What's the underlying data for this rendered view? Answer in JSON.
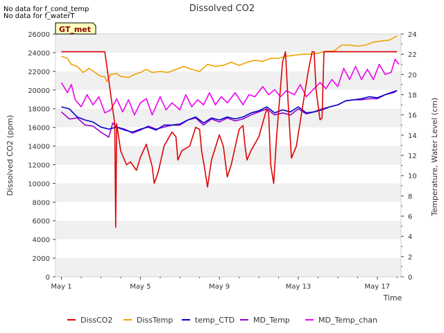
{
  "notes": [
    "No data for f_cond_temp",
    "No data for f_waterT"
  ],
  "badge": "GT_met",
  "chart_data": {
    "type": "line",
    "title": "Dissolved CO2",
    "xlabel": "Time",
    "ylabel_left": "Dissolved CO2 (ppm)",
    "ylabel_right": "Temperature, Water Level (cm)",
    "xlim": [
      0.7,
      18.2
    ],
    "ylim_left": [
      0,
      26000
    ],
    "ylim_right": [
      0,
      24
    ],
    "x_ticks": [
      {
        "x": 1,
        "label": "May 1"
      },
      {
        "x": 5,
        "label": "May 5"
      },
      {
        "x": 9,
        "label": "May 9"
      },
      {
        "x": 13,
        "label": "May 13"
      },
      {
        "x": 17,
        "label": "May 17"
      }
    ],
    "y_ticks_left": [
      0,
      2000,
      4000,
      6000,
      8000,
      10000,
      12000,
      14000,
      16000,
      18000,
      20000,
      22000,
      24000,
      26000
    ],
    "y_ticks_right": [
      0,
      2,
      4,
      6,
      8,
      10,
      12,
      14,
      16,
      18,
      20,
      22,
      24
    ],
    "grid": "horizontal bands",
    "legend_position": "bottom",
    "series": [
      {
        "name": "DissCO2",
        "axis": "left",
        "color": "#dd0000",
        "points": [
          [
            1.0,
            24100
          ],
          [
            3.2,
            24100
          ],
          [
            3.7,
            16400
          ],
          [
            3.75,
            5300
          ],
          [
            3.8,
            16400
          ],
          [
            4.0,
            13500
          ],
          [
            4.3,
            12000
          ],
          [
            4.5,
            12300
          ],
          [
            4.8,
            11400
          ],
          [
            5.0,
            12800
          ],
          [
            5.3,
            14200
          ],
          [
            5.6,
            11800
          ],
          [
            5.7,
            10000
          ],
          [
            5.9,
            11200
          ],
          [
            6.2,
            14000
          ],
          [
            6.6,
            15500
          ],
          [
            6.8,
            15000
          ],
          [
            6.9,
            12500
          ],
          [
            7.1,
            13500
          ],
          [
            7.5,
            14000
          ],
          [
            7.8,
            16000
          ],
          [
            8.0,
            15800
          ],
          [
            8.1,
            13500
          ],
          [
            8.3,
            11000
          ],
          [
            8.4,
            9600
          ],
          [
            8.6,
            12500
          ],
          [
            9.0,
            15200
          ],
          [
            9.2,
            14000
          ],
          [
            9.4,
            10700
          ],
          [
            9.6,
            12000
          ],
          [
            10.0,
            15800
          ],
          [
            10.2,
            16200
          ],
          [
            10.3,
            14000
          ],
          [
            10.4,
            12500
          ],
          [
            10.6,
            13500
          ],
          [
            11.0,
            15000
          ],
          [
            11.4,
            18000
          ],
          [
            11.5,
            17500
          ],
          [
            11.6,
            12000
          ],
          [
            11.75,
            10000
          ],
          [
            11.9,
            15000
          ],
          [
            12.2,
            23000
          ],
          [
            12.35,
            24100
          ],
          [
            12.5,
            18000
          ],
          [
            12.65,
            12700
          ],
          [
            12.9,
            14000
          ],
          [
            13.2,
            18000
          ],
          [
            13.5,
            22000
          ],
          [
            13.7,
            24100
          ],
          [
            13.8,
            24100
          ],
          [
            13.9,
            20000
          ],
          [
            14.1,
            16800
          ],
          [
            14.2,
            17000
          ],
          [
            14.3,
            24100
          ],
          [
            15.0,
            24100
          ],
          [
            16.0,
            24100
          ],
          [
            17.0,
            24100
          ],
          [
            18.0,
            24100
          ]
        ]
      },
      {
        "name": "DissTemp",
        "axis": "right",
        "color": "#f0a000",
        "points": [
          [
            1.0,
            21.8
          ],
          [
            1.3,
            21.6
          ],
          [
            1.5,
            21.0
          ],
          [
            1.8,
            20.8
          ],
          [
            2.1,
            20.2
          ],
          [
            2.4,
            20.6
          ],
          [
            2.7,
            20.2
          ],
          [
            3.0,
            19.8
          ],
          [
            3.2,
            19.8
          ],
          [
            3.3,
            19.3
          ],
          [
            3.5,
            20.0
          ],
          [
            3.8,
            20.1
          ],
          [
            4.0,
            19.8
          ],
          [
            4.4,
            19.7
          ],
          [
            4.7,
            20.0
          ],
          [
            5.0,
            20.2
          ],
          [
            5.3,
            20.5
          ],
          [
            5.6,
            20.2
          ],
          [
            6.0,
            20.3
          ],
          [
            6.4,
            20.2
          ],
          [
            6.8,
            20.5
          ],
          [
            7.2,
            20.8
          ],
          [
            7.6,
            20.5
          ],
          [
            8.0,
            20.3
          ],
          [
            8.4,
            21.0
          ],
          [
            8.8,
            20.8
          ],
          [
            9.2,
            20.9
          ],
          [
            9.6,
            21.2
          ],
          [
            10.0,
            20.9
          ],
          [
            10.4,
            21.2
          ],
          [
            10.8,
            21.4
          ],
          [
            11.2,
            21.3
          ],
          [
            11.6,
            21.6
          ],
          [
            12.0,
            21.6
          ],
          [
            12.4,
            21.8
          ],
          [
            12.8,
            21.9
          ],
          [
            13.2,
            22.0
          ],
          [
            13.6,
            22.0
          ],
          [
            14.0,
            22.1
          ],
          [
            14.4,
            22.3
          ],
          [
            14.8,
            22.3
          ],
          [
            15.2,
            22.9
          ],
          [
            15.6,
            22.9
          ],
          [
            16.0,
            22.8
          ],
          [
            16.4,
            22.9
          ],
          [
            16.8,
            23.2
          ],
          [
            17.2,
            23.3
          ],
          [
            17.6,
            23.4
          ],
          [
            18.0,
            23.8
          ]
        ]
      },
      {
        "name": "temp_CTD",
        "axis": "right",
        "color": "#0000cc",
        "points": [
          [
            1.0,
            16.8
          ],
          [
            1.4,
            16.6
          ],
          [
            1.8,
            15.8
          ],
          [
            2.2,
            15.5
          ],
          [
            2.6,
            15.3
          ],
          [
            3.0,
            14.8
          ],
          [
            3.4,
            14.6
          ],
          [
            3.8,
            14.8
          ],
          [
            4.2,
            14.5
          ],
          [
            4.6,
            14.3
          ],
          [
            5.0,
            14.6
          ],
          [
            5.4,
            14.8
          ],
          [
            5.8,
            14.5
          ],
          [
            6.2,
            15.0
          ],
          [
            6.6,
            15.0
          ],
          [
            7.0,
            15.1
          ],
          [
            7.4,
            15.5
          ],
          [
            7.8,
            15.8
          ],
          [
            8.2,
            15.2
          ],
          [
            8.6,
            15.7
          ],
          [
            9.0,
            15.5
          ],
          [
            9.4,
            15.8
          ],
          [
            9.8,
            15.6
          ],
          [
            10.2,
            15.8
          ],
          [
            10.6,
            16.2
          ],
          [
            11.0,
            16.4
          ],
          [
            11.4,
            16.8
          ],
          [
            11.8,
            16.2
          ],
          [
            12.2,
            16.5
          ],
          [
            12.6,
            16.3
          ],
          [
            13.0,
            16.8
          ],
          [
            13.4,
            16.2
          ],
          [
            13.8,
            16.3
          ],
          [
            14.2,
            16.5
          ],
          [
            14.6,
            16.8
          ],
          [
            15.0,
            17.0
          ],
          [
            15.4,
            17.4
          ],
          [
            15.8,
            17.5
          ],
          [
            16.2,
            17.6
          ],
          [
            16.6,
            17.8
          ],
          [
            17.0,
            17.7
          ],
          [
            17.4,
            18.0
          ],
          [
            17.8,
            18.2
          ],
          [
            18.0,
            18.4
          ]
        ]
      },
      {
        "name": "MD_Temp",
        "axis": "right",
        "color": "#9900cc",
        "points": [
          [
            1.0,
            16.3
          ],
          [
            1.4,
            15.6
          ],
          [
            1.8,
            15.7
          ],
          [
            2.2,
            15.0
          ],
          [
            2.6,
            14.9
          ],
          [
            3.0,
            14.3
          ],
          [
            3.4,
            13.8
          ],
          [
            3.6,
            15.2
          ],
          [
            3.8,
            14.8
          ],
          [
            4.2,
            14.6
          ],
          [
            4.6,
            14.2
          ],
          [
            5.0,
            14.5
          ],
          [
            5.4,
            14.9
          ],
          [
            5.8,
            14.6
          ],
          [
            6.2,
            14.8
          ],
          [
            6.6,
            15.0
          ],
          [
            7.0,
            15.0
          ],
          [
            7.4,
            15.5
          ],
          [
            7.8,
            15.7
          ],
          [
            8.2,
            15.0
          ],
          [
            8.6,
            15.6
          ],
          [
            9.0,
            15.3
          ],
          [
            9.4,
            15.7
          ],
          [
            9.8,
            15.4
          ],
          [
            10.2,
            15.6
          ],
          [
            10.6,
            16.0
          ],
          [
            11.0,
            16.3
          ],
          [
            11.4,
            16.6
          ],
          [
            11.8,
            16.0
          ],
          [
            12.2,
            16.2
          ],
          [
            12.6,
            16.0
          ],
          [
            13.0,
            16.6
          ],
          [
            13.4,
            16.1
          ],
          [
            13.8,
            16.3
          ],
          [
            14.2,
            16.6
          ],
          [
            14.6,
            16.8
          ],
          [
            15.0,
            17.0
          ],
          [
            15.4,
            17.4
          ],
          [
            15.8,
            17.5
          ],
          [
            16.2,
            17.5
          ],
          [
            16.6,
            17.6
          ],
          [
            17.0,
            17.6
          ],
          [
            17.4,
            18.0
          ],
          [
            17.8,
            18.3
          ],
          [
            18.0,
            18.4
          ]
        ]
      },
      {
        "name": "MD_Temp_chan",
        "axis": "right",
        "color": "#ee00ee",
        "points": [
          [
            1.0,
            19.2
          ],
          [
            1.3,
            18.2
          ],
          [
            1.5,
            19.0
          ],
          [
            1.7,
            17.5
          ],
          [
            2.0,
            16.8
          ],
          [
            2.3,
            18.0
          ],
          [
            2.6,
            17.0
          ],
          [
            2.9,
            17.8
          ],
          [
            3.2,
            16.2
          ],
          [
            3.5,
            16.5
          ],
          [
            3.8,
            17.6
          ],
          [
            4.1,
            16.3
          ],
          [
            4.4,
            17.5
          ],
          [
            4.7,
            16.0
          ],
          [
            5.0,
            17.2
          ],
          [
            5.3,
            17.6
          ],
          [
            5.6,
            16.0
          ],
          [
            6.0,
            17.8
          ],
          [
            6.3,
            16.5
          ],
          [
            6.6,
            17.2
          ],
          [
            7.0,
            16.5
          ],
          [
            7.3,
            18.0
          ],
          [
            7.6,
            16.8
          ],
          [
            7.9,
            17.5
          ],
          [
            8.2,
            17.0
          ],
          [
            8.5,
            18.2
          ],
          [
            8.8,
            17.0
          ],
          [
            9.1,
            17.8
          ],
          [
            9.4,
            17.2
          ],
          [
            9.8,
            18.2
          ],
          [
            10.2,
            17.0
          ],
          [
            10.5,
            18.0
          ],
          [
            10.8,
            17.8
          ],
          [
            11.2,
            18.8
          ],
          [
            11.5,
            18.0
          ],
          [
            11.8,
            18.5
          ],
          [
            12.1,
            17.8
          ],
          [
            12.4,
            18.4
          ],
          [
            12.8,
            18.0
          ],
          [
            13.1,
            19.0
          ],
          [
            13.4,
            17.8
          ],
          [
            13.8,
            18.6
          ],
          [
            14.1,
            19.2
          ],
          [
            14.4,
            18.6
          ],
          [
            14.7,
            19.5
          ],
          [
            15.0,
            18.8
          ],
          [
            15.3,
            20.6
          ],
          [
            15.6,
            19.5
          ],
          [
            15.9,
            20.8
          ],
          [
            16.2,
            19.5
          ],
          [
            16.5,
            20.5
          ],
          [
            16.8,
            19.5
          ],
          [
            17.1,
            21.0
          ],
          [
            17.4,
            20.0
          ],
          [
            17.7,
            20.2
          ],
          [
            17.9,
            21.5
          ],
          [
            18.1,
            21.0
          ]
        ]
      }
    ]
  }
}
